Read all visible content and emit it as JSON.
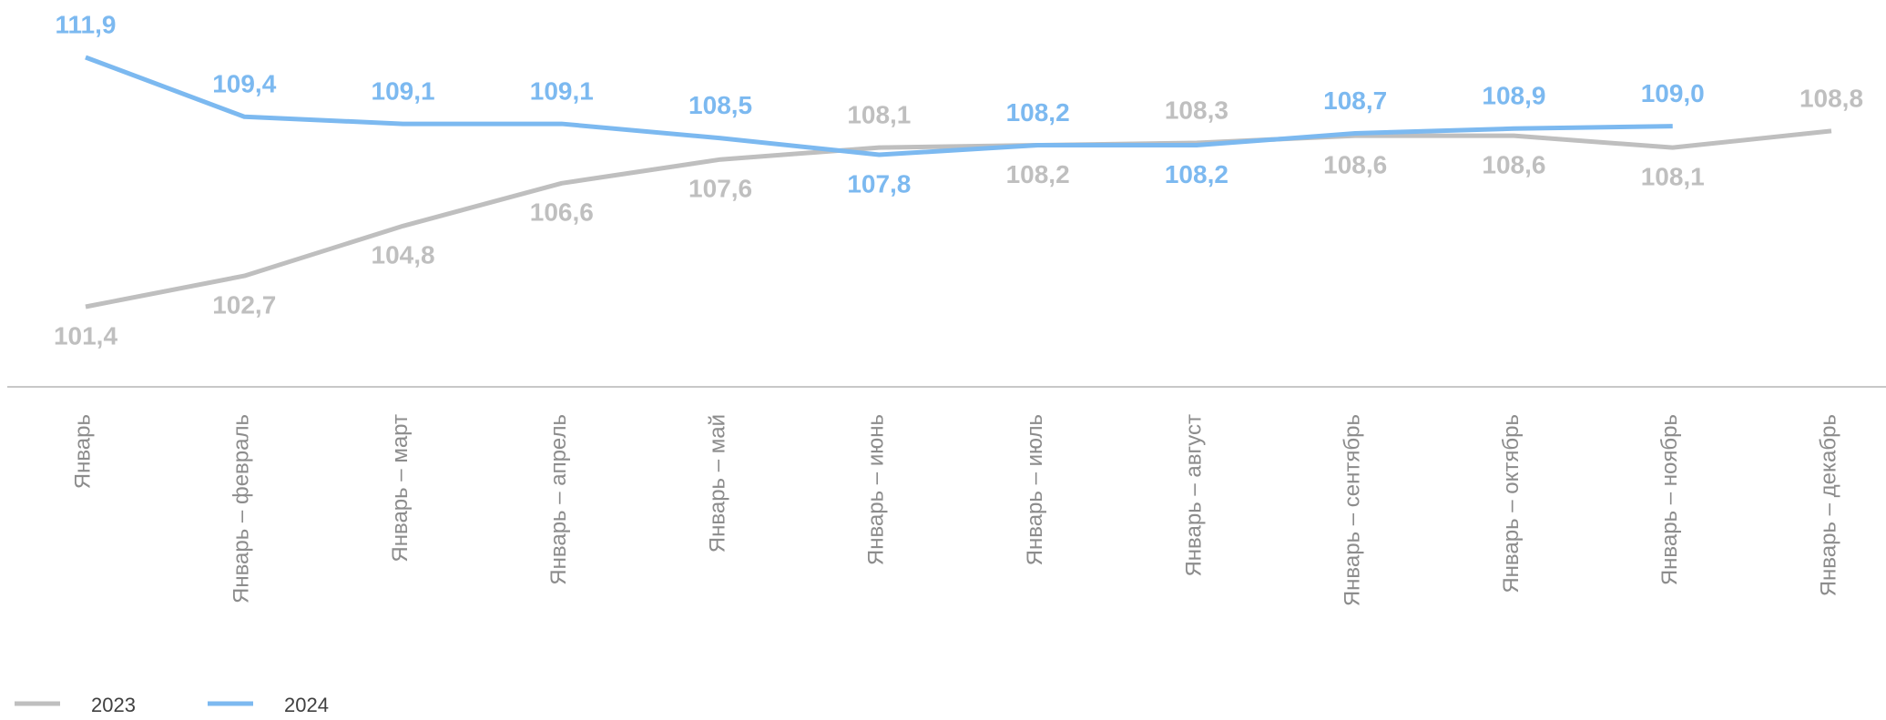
{
  "chart_data": {
    "type": "line",
    "categories": [
      "Январь",
      "Январь – февраль",
      "Январь – март",
      "Январь – апрель",
      "Январь – май",
      "Январь – июнь",
      "Январь – июль",
      "Январь – август",
      "Январь – сентябрь",
      "Январь – октябрь",
      "Январь – ноябрь",
      "Январь – декабрь"
    ],
    "series": [
      {
        "name": "2023",
        "color": "#bfbfbf",
        "values": [
          101.4,
          102.7,
          104.8,
          106.6,
          107.6,
          108.1,
          108.2,
          108.3,
          108.6,
          108.6,
          108.1,
          108.8
        ],
        "value_labels": [
          "101,4",
          "102,7",
          "104,8",
          "106,6",
          "107,6",
          "108,1",
          "108,2",
          "108,3",
          "108,6",
          "108,6",
          "108,1",
          "108,8"
        ]
      },
      {
        "name": "2024",
        "color": "#7cb9f0",
        "values": [
          111.9,
          109.4,
          109.1,
          109.1,
          108.5,
          107.8,
          108.2,
          108.2,
          108.7,
          108.9,
          109.0,
          null
        ],
        "value_labels": [
          "111,9",
          "109,4",
          "109,1",
          "109,1",
          "108,5",
          "107,8",
          "108,2",
          "108,2",
          "108,7",
          "108,9",
          "109,0",
          null
        ]
      }
    ]
  }
}
